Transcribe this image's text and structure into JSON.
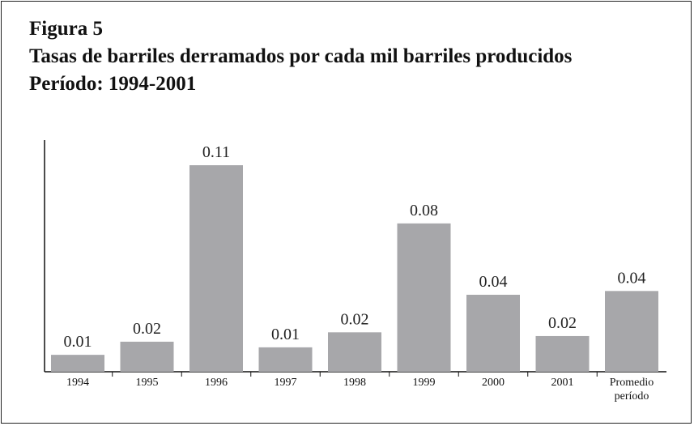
{
  "chart_data": {
    "type": "bar",
    "figure_label": "Figura 5",
    "title": "Tasas de barriles derramados por cada mil barriles producidos",
    "subtitle": "Período: 1994-2001",
    "categories": [
      "1994",
      "1995",
      "1996",
      "1997",
      "1998",
      "1999",
      "2000",
      "2001",
      "Promedio período"
    ],
    "values": [
      0.009,
      0.016,
      0.11,
      0.013,
      0.021,
      0.079,
      0.041,
      0.019,
      0.043
    ],
    "value_labels": [
      "0.01",
      "0.02",
      "0.11",
      "0.01",
      "0.02",
      "0.08",
      "0.04",
      "0.02",
      "0.04"
    ],
    "color": "#a7a7aa"
  }
}
